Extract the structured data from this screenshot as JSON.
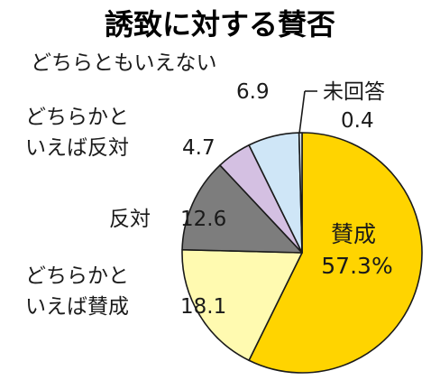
{
  "chart_data": {
    "type": "pie",
    "title": "誘致に対する賛否",
    "unit": "%",
    "slices": [
      {
        "label": "賛成",
        "value": 57.3,
        "display": "57.3%",
        "color": "#ffd400"
      },
      {
        "label": "どちらかといえば賛成",
        "label_lines": [
          "どちらかと",
          "いえば賛成"
        ],
        "value": 18.1,
        "display": "18.1",
        "color": "#fffab0"
      },
      {
        "label": "反対",
        "label_lines": [
          "反対"
        ],
        "value": 12.6,
        "display": "12.6",
        "color": "#7d7d7d"
      },
      {
        "label": "どちらかといえば反対",
        "label_lines": [
          "どちらかと",
          "いえば反対"
        ],
        "value": 4.7,
        "display": "4.7",
        "color": "#d4c0e2"
      },
      {
        "label": "どちらともいえない",
        "label_lines": [
          "どちらともいえない"
        ],
        "value": 6.9,
        "display": "6.9",
        "color": "#cfe6f7"
      },
      {
        "label": "未回答",
        "label_lines": [
          "未回答"
        ],
        "value": 0.4,
        "display": "0.4",
        "color": "#e6f1f8"
      }
    ]
  }
}
